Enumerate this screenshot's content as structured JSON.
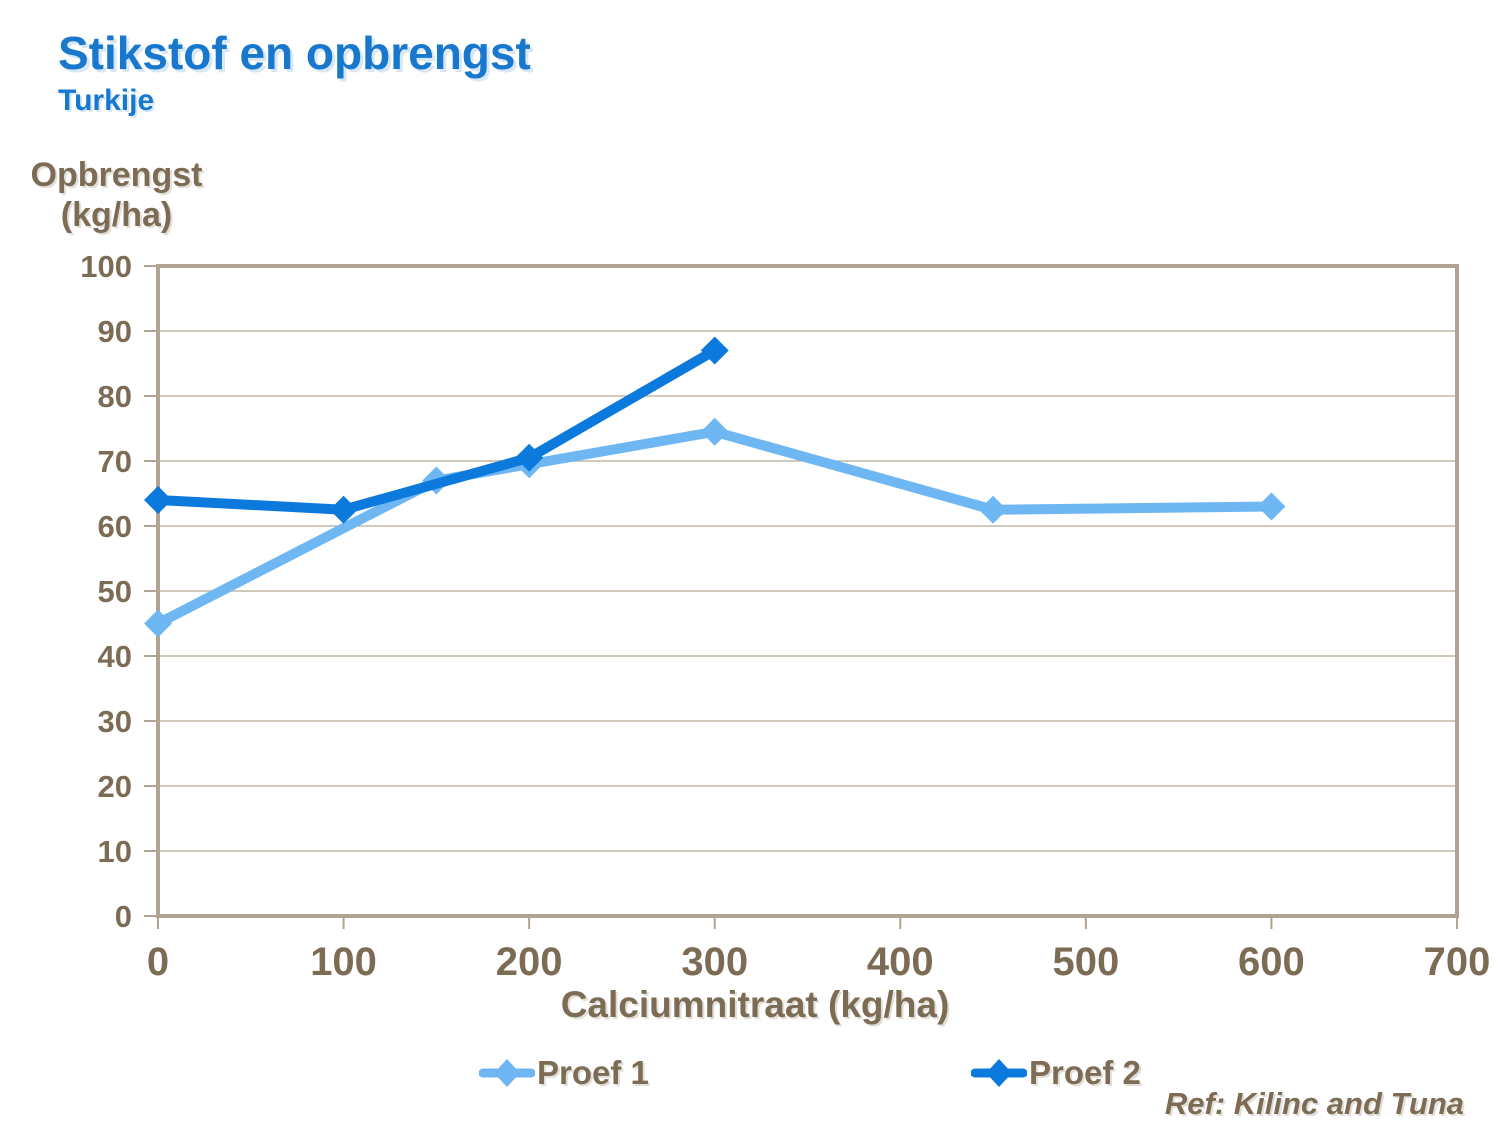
{
  "chart_data": {
    "type": "line",
    "title": "Stikstof en opbrengst",
    "subtitle": "Turkije",
    "xlabel": "Calciumnitraat (kg/ha)",
    "ylabel_lines": [
      "Opbrengst",
      "(kg/ha)"
    ],
    "xlim": [
      0,
      700
    ],
    "ylim": [
      0,
      100
    ],
    "xticks": [
      0,
      100,
      200,
      300,
      400,
      500,
      600,
      700
    ],
    "yticks": [
      0,
      10,
      20,
      30,
      40,
      50,
      60,
      70,
      80,
      90,
      100
    ],
    "grid": true,
    "marker": "diamond",
    "legend_position": "bottom-center",
    "series": [
      {
        "name": "Proef 1",
        "color": "#6fb7f2",
        "x": [
          0,
          150,
          200,
          300,
          450,
          600
        ],
        "y": [
          45,
          67,
          69.5,
          74.5,
          62.5,
          63
        ]
      },
      {
        "name": "Proef 2",
        "color": "#0c79dc",
        "x": [
          0,
          100,
          200,
          300
        ],
        "y": [
          64,
          62.5,
          70.5,
          87
        ]
      }
    ],
    "annotation": "Ref: Kilinc and Tuna"
  },
  "colors": {
    "title_blue": "#1778ce",
    "axis_text": "#7d6c55",
    "plot_border": "#b0a391",
    "gridline": "#c3b7a7",
    "series_1": "#6fb7f2",
    "series_2": "#0c79dc"
  }
}
